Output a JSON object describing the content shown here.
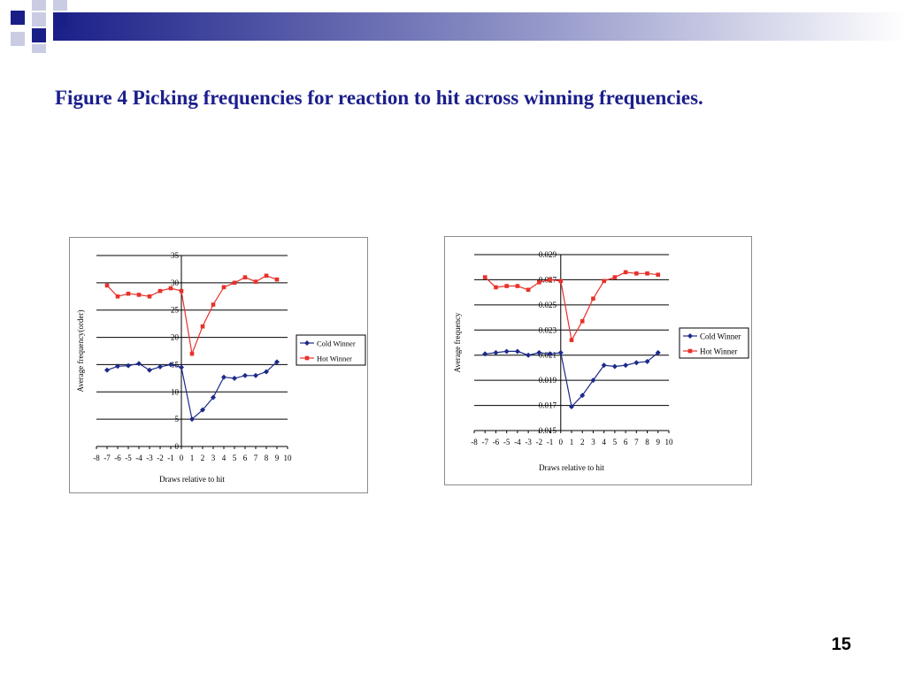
{
  "slide": {
    "title": "Figure 4 Picking frequencies for reaction to hit across winning frequencies.",
    "page_number": "15"
  },
  "colors": {
    "title": "#1b1e8c",
    "cold": "#1c2a8a",
    "hot": "#e8312b",
    "grid": "#000000",
    "decor_dark": "#1a1f88",
    "decor_light": "#c9cce3"
  },
  "chart_data": [
    {
      "type": "line",
      "xlabel": "Draws relative to hit",
      "ylabel": "Average frequency(order)",
      "xlim": [
        -8,
        10
      ],
      "ylim": [
        0,
        35
      ],
      "xticks": [
        -8,
        -7,
        -6,
        -5,
        -4,
        -3,
        -2,
        -1,
        0,
        1,
        2,
        3,
        4,
        5,
        6,
        7,
        8,
        9,
        10
      ],
      "yticks": [
        "0",
        "5",
        "10",
        "15",
        "20",
        "25",
        "30",
        "35"
      ],
      "grid": true,
      "legend_position": "right",
      "series": [
        {
          "name": "Cold Winner",
          "color_key": "cold",
          "marker": "diamond",
          "x": [
            -7,
            -6,
            -5,
            -4,
            -3,
            -2,
            -1,
            0,
            1,
            2,
            3,
            4,
            5,
            6,
            7,
            8,
            9
          ],
          "values": [
            14.0,
            14.7,
            14.8,
            15.2,
            14.0,
            14.6,
            15.0,
            14.5,
            5.0,
            6.7,
            9.0,
            12.7,
            12.5,
            13.0,
            13.0,
            13.7,
            15.5
          ]
        },
        {
          "name": "Hot Winner",
          "color_key": "hot",
          "marker": "square",
          "x": [
            -7,
            -6,
            -5,
            -4,
            -3,
            -2,
            -1,
            0,
            1,
            2,
            3,
            4,
            5,
            6,
            7,
            8,
            9
          ],
          "values": [
            29.5,
            27.5,
            28.0,
            27.8,
            27.5,
            28.5,
            29.0,
            28.5,
            17.0,
            22.0,
            26.0,
            29.2,
            30.0,
            31.0,
            30.2,
            31.3,
            30.6
          ]
        }
      ]
    },
    {
      "type": "line",
      "xlabel": "Draws relative to hit",
      "ylabel": "Average frequency",
      "xlim": [
        -8,
        10
      ],
      "ylim": [
        0.015,
        0.029
      ],
      "xticks": [
        -8,
        -7,
        -6,
        -5,
        -4,
        -3,
        -2,
        -1,
        0,
        1,
        2,
        3,
        4,
        5,
        6,
        7,
        8,
        9,
        10
      ],
      "yticks": [
        "0.015",
        "0.017",
        "0.019",
        "0.021",
        "0.023",
        "0.025",
        "0.027",
        "0.029"
      ],
      "grid": true,
      "legend_position": "right",
      "series": [
        {
          "name": "Cold Winner",
          "color_key": "cold",
          "marker": "diamond",
          "x": [
            -7,
            -6,
            -5,
            -4,
            -3,
            -2,
            -1,
            0,
            1,
            2,
            3,
            4,
            5,
            6,
            7,
            8,
            9
          ],
          "values": [
            0.0211,
            0.0212,
            0.0213,
            0.0213,
            0.021,
            0.0212,
            0.0211,
            0.0212,
            0.0169,
            0.0178,
            0.019,
            0.0202,
            0.0201,
            0.0202,
            0.0204,
            0.0205,
            0.0212
          ]
        },
        {
          "name": "Hot Winner",
          "color_key": "hot",
          "marker": "square",
          "x": [
            -7,
            -6,
            -5,
            -4,
            -3,
            -2,
            -1,
            0,
            1,
            2,
            3,
            4,
            5,
            6,
            7,
            8,
            9
          ],
          "values": [
            0.0272,
            0.0264,
            0.0265,
            0.0265,
            0.0262,
            0.0268,
            0.027,
            0.0269,
            0.0222,
            0.0237,
            0.0255,
            0.0269,
            0.0272,
            0.0276,
            0.0275,
            0.0275,
            0.0274
          ]
        }
      ]
    }
  ]
}
